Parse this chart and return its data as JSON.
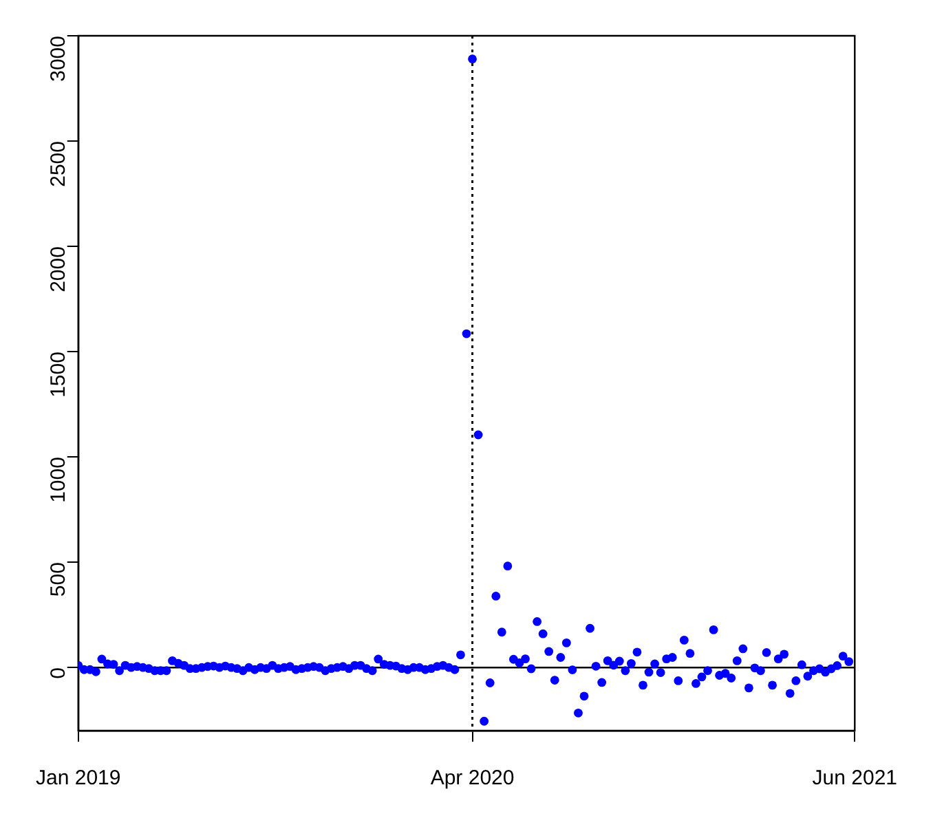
{
  "chart_data": {
    "type": "scatter",
    "categories": [
      "Jan 2019",
      null,
      null,
      null,
      null,
      null,
      null,
      null,
      null,
      null,
      null,
      null,
      null,
      null,
      null,
      null,
      null,
      null,
      null,
      null,
      null,
      null,
      null,
      null,
      null,
      null,
      null,
      null,
      null,
      null,
      null,
      null,
      null,
      null,
      null,
      null,
      null,
      null,
      null,
      null,
      null,
      null,
      null,
      null,
      null,
      null,
      null,
      null,
      null,
      null,
      null,
      null,
      null,
      null,
      null,
      null,
      null,
      null,
      null,
      null,
      null,
      null,
      null,
      null,
      null,
      null,
      null,
      "Apr 2020",
      null,
      null,
      null,
      null,
      null,
      null,
      null,
      null,
      null,
      null,
      null,
      null,
      null,
      null,
      null,
      null,
      null,
      null,
      null,
      null,
      null,
      null,
      null,
      null,
      null,
      null,
      null,
      null,
      null,
      null,
      null,
      null,
      null,
      null,
      null,
      null,
      null,
      null,
      null,
      null,
      null,
      null,
      null,
      null,
      null,
      null,
      null,
      null,
      null,
      null,
      null,
      null,
      null,
      null,
      null,
      null,
      null,
      null,
      null,
      null,
      null,
      null,
      null,
      null,
      "Jun 2021"
    ],
    "series": [
      {
        "color": "#0000ff",
        "values": [
          10,
          -10,
          -10,
          -20,
          40,
          17,
          15,
          -15,
          10,
          0,
          5,
          0,
          -5,
          -15,
          -15,
          -15,
          32,
          20,
          10,
          -5,
          -5,
          0,
          5,
          7,
          0,
          7,
          0,
          -5,
          -15,
          0,
          -10,
          0,
          -5,
          10,
          -5,
          0,
          5,
          -10,
          -5,
          0,
          5,
          0,
          -15,
          -5,
          0,
          5,
          -5,
          10,
          10,
          -5,
          -15,
          40,
          15,
          10,
          7,
          -5,
          -10,
          0,
          0,
          -10,
          -5,
          5,
          10,
          0,
          -10,
          60,
          1585,
          2890,
          1105,
          -255,
          -73,
          339,
          168,
          482,
          39,
          22,
          41,
          -6,
          218,
          160,
          76,
          -60,
          48,
          117,
          -11,
          -216,
          -136,
          186,
          6,
          -71,
          32,
          11,
          30,
          -15,
          19,
          73,
          -84,
          -22,
          17,
          -24,
          41,
          48,
          -63,
          130,
          67,
          -76,
          -45,
          -15,
          179,
          -37,
          -28,
          -50,
          32,
          89,
          -97,
          -2,
          -15,
          71,
          -84,
          41,
          63,
          -123,
          -63,
          13,
          -41,
          -15,
          -6,
          -22,
          -6,
          9,
          54,
          28,
          null
        ]
      }
    ],
    "ylim": [
      -300,
      3000
    ],
    "yticks": [
      0,
      500,
      1000,
      1500,
      2000,
      2500,
      3000
    ],
    "marker": "circle",
    "grid": false,
    "legend": false,
    "ref_lines": [
      {
        "axis": "x",
        "value": "Apr 2020",
        "color": "#000000",
        "line_style": "dotted"
      },
      {
        "axis": "y",
        "value": 0,
        "color": "#000000",
        "line_style": "solid"
      }
    ]
  }
}
